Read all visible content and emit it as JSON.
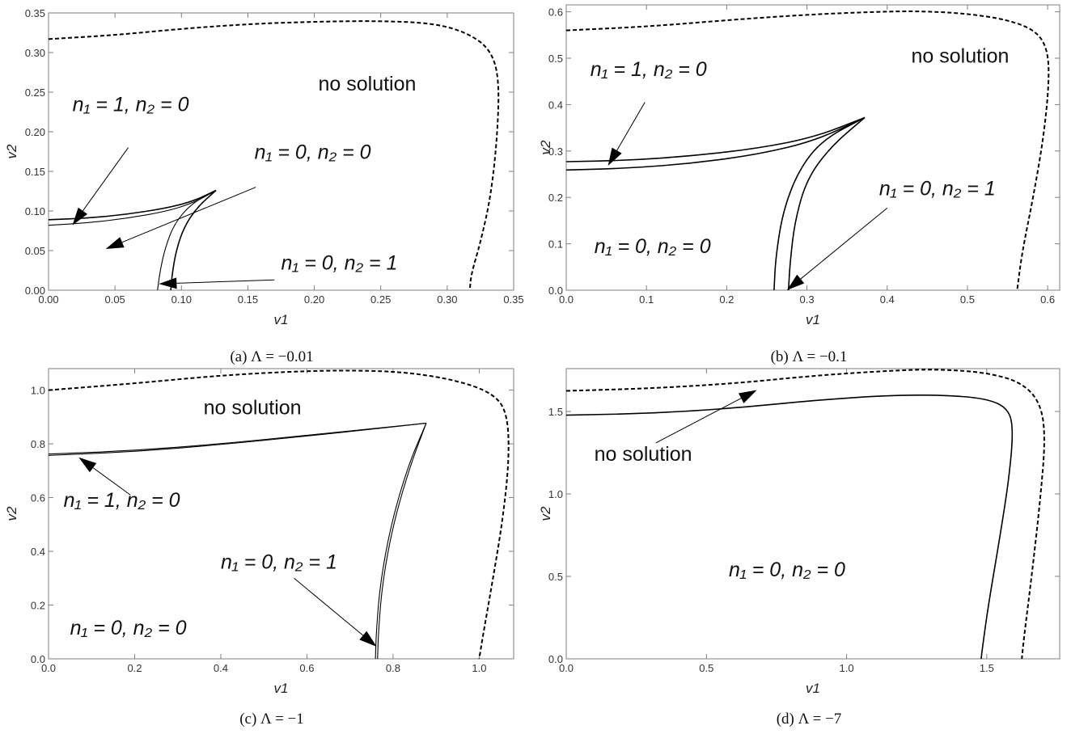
{
  "chart_data": [
    {
      "type": "line",
      "caption": "(a) Λ = −0.01",
      "xlabel": "v1",
      "ylabel": "v2",
      "xlim": [
        0,
        0.35
      ],
      "ylim": [
        0,
        0.35
      ],
      "xticks": [
        "0.00",
        "0.05",
        "0.10",
        "0.15",
        "0.20",
        "0.25",
        "0.30",
        "0.35"
      ],
      "yticks": [
        "0.00",
        "0.05",
        "0.10",
        "0.15",
        "0.20",
        "0.25",
        "0.30",
        "0.35"
      ],
      "xtick_values": [
        0,
        0.05,
        0.1,
        0.15,
        0.2,
        0.25,
        0.3,
        0.35
      ],
      "ytick_values": [
        0,
        0.05,
        0.1,
        0.15,
        0.2,
        0.25,
        0.3,
        0.35
      ],
      "series": [
        {
          "style": "solid",
          "points": [
            [
              0,
              0.089
            ],
            [
              0.03,
              0.091
            ],
            [
              0.06,
              0.096
            ],
            [
              0.09,
              0.104
            ],
            [
              0.11,
              0.113
            ],
            [
              0.126,
              0.126
            ]
          ]
        },
        {
          "style": "thin",
          "points": [
            [
              0,
              0.082
            ],
            [
              0.03,
              0.085
            ],
            [
              0.06,
              0.091
            ],
            [
              0.09,
              0.1
            ],
            [
              0.11,
              0.111
            ],
            [
              0.126,
              0.126
            ]
          ]
        },
        {
          "style": "solid",
          "points": [
            [
              0.126,
              0.126
            ],
            [
              0.112,
              0.105
            ],
            [
              0.102,
              0.08
            ],
            [
              0.096,
              0.05
            ],
            [
              0.093,
              0.02
            ],
            [
              0.092,
              0.0
            ]
          ]
        },
        {
          "style": "thin",
          "points": [
            [
              0.126,
              0.126
            ],
            [
              0.108,
              0.11
            ],
            [
              0.095,
              0.085
            ],
            [
              0.088,
              0.055
            ],
            [
              0.084,
              0.025
            ],
            [
              0.082,
              0.0
            ]
          ]
        },
        {
          "style": "dashed",
          "points": [
            [
              0,
              0.317
            ],
            [
              0.05,
              0.322
            ],
            [
              0.1,
              0.33
            ],
            [
              0.15,
              0.336
            ],
            [
              0.2,
              0.339
            ],
            [
              0.25,
              0.34
            ],
            [
              0.29,
              0.337
            ],
            [
              0.315,
              0.325
            ],
            [
              0.332,
              0.305
            ],
            [
              0.339,
              0.27
            ],
            [
              0.338,
              0.2
            ],
            [
              0.333,
              0.12
            ],
            [
              0.325,
              0.06
            ],
            [
              0.318,
              0.02
            ],
            [
              0.317,
              0.0
            ]
          ]
        }
      ],
      "annotations": [
        {
          "text": "n₁ = 1, n₂ = 0",
          "at": [
            0.018,
            0.226
          ],
          "arrow_from": [
            0.06,
            0.18
          ],
          "arrow_to": [
            0.018,
            0.082
          ]
        },
        {
          "text": "n₁ = 0, n₂ = 0",
          "at": [
            0.155,
            0.166
          ],
          "arrow_from": [
            0.156,
            0.13
          ],
          "arrow_to": [
            0.043,
            0.052
          ]
        },
        {
          "text": "n₁ = 0, n₂ = 1",
          "at": [
            0.175,
            0.026
          ],
          "arrow_from": [
            0.17,
            0.013
          ],
          "arrow_to": [
            0.083,
            0.008
          ]
        },
        {
          "text": "no solution",
          "at": [
            0.203,
            0.252
          ]
        }
      ]
    },
    {
      "type": "line",
      "caption": "(b) Λ = −0.1",
      "xlabel": "v1",
      "ylabel": "v2",
      "xlim": [
        0,
        0.615
      ],
      "ylim": [
        0,
        0.615
      ],
      "xticks": [
        "0.0",
        "0.1",
        "0.2",
        "0.3",
        "0.4",
        "0.5",
        "0.6"
      ],
      "yticks": [
        "0.0",
        "0.1",
        "0.2",
        "0.3",
        "0.4",
        "0.5",
        "0.6"
      ],
      "xtick_values": [
        0,
        0.1,
        0.2,
        0.3,
        0.4,
        0.5,
        0.6
      ],
      "ytick_values": [
        0,
        0.1,
        0.2,
        0.3,
        0.4,
        0.5,
        0.6
      ],
      "series": [
        {
          "style": "solid",
          "points": [
            [
              0,
              0.277
            ],
            [
              0.08,
              0.28
            ],
            [
              0.16,
              0.29
            ],
            [
              0.24,
              0.306
            ],
            [
              0.31,
              0.33
            ],
            [
              0.372,
              0.372
            ]
          ]
        },
        {
          "style": "solid",
          "points": [
            [
              0,
              0.259
            ],
            [
              0.08,
              0.263
            ],
            [
              0.16,
              0.274
            ],
            [
              0.24,
              0.293
            ],
            [
              0.31,
              0.322
            ],
            [
              0.372,
              0.372
            ]
          ]
        },
        {
          "style": "solid",
          "points": [
            [
              0.372,
              0.372
            ],
            [
              0.33,
              0.31
            ],
            [
              0.3,
              0.24
            ],
            [
              0.285,
              0.15
            ],
            [
              0.279,
              0.06
            ],
            [
              0.277,
              0.0
            ]
          ]
        },
        {
          "style": "solid",
          "points": [
            [
              0.372,
              0.372
            ],
            [
              0.32,
              0.325
            ],
            [
              0.29,
              0.26
            ],
            [
              0.27,
              0.17
            ],
            [
              0.261,
              0.07
            ],
            [
              0.259,
              0.0
            ]
          ]
        },
        {
          "style": "dashed",
          "points": [
            [
              0,
              0.56
            ],
            [
              0.1,
              0.568
            ],
            [
              0.2,
              0.582
            ],
            [
              0.3,
              0.594
            ],
            [
              0.4,
              0.601
            ],
            [
              0.45,
              0.601
            ],
            [
              0.5,
              0.596
            ],
            [
              0.55,
              0.583
            ],
            [
              0.585,
              0.56
            ],
            [
              0.6,
              0.52
            ],
            [
              0.602,
              0.45
            ],
            [
              0.595,
              0.33
            ],
            [
              0.582,
              0.2
            ],
            [
              0.568,
              0.08
            ],
            [
              0.562,
              0.0
            ]
          ]
        }
      ],
      "annotations": [
        {
          "text": "n₁ = 1, n₂ = 0",
          "at": [
            0.03,
            0.462
          ],
          "arrow_from": [
            0.098,
            0.405
          ],
          "arrow_to": [
            0.052,
            0.268
          ]
        },
        {
          "text": "n₁ = 0, n₂ = 1",
          "at": [
            0.39,
            0.205
          ],
          "arrow_from": [
            0.4,
            0.177
          ],
          "arrow_to": [
            0.275,
            0.0
          ]
        },
        {
          "text": "n₁ = 0, n₂ = 0",
          "at": [
            0.035,
            0.08
          ]
        },
        {
          "text": "no solution",
          "at": [
            0.43,
            0.49
          ]
        }
      ]
    },
    {
      "type": "line",
      "caption": "(c) Λ = −1",
      "xlabel": "v1",
      "ylabel": "v2",
      "xlim": [
        0,
        1.08
      ],
      "ylim": [
        0,
        1.08
      ],
      "xticks": [
        "0.0",
        "0.2",
        "0.4",
        "0.6",
        "0.8",
        "1.0"
      ],
      "yticks": [
        "0.0",
        "0.2",
        "0.4",
        "0.6",
        "0.8",
        "1.0"
      ],
      "xtick_values": [
        0,
        0.2,
        0.4,
        0.6,
        0.8,
        1.0
      ],
      "ytick_values": [
        0,
        0.2,
        0.4,
        0.6,
        0.8,
        1.0
      ],
      "series": [
        {
          "style": "thin",
          "points": [
            [
              0,
              0.762
            ],
            [
              0.2,
              0.775
            ],
            [
              0.4,
              0.8
            ],
            [
              0.6,
              0.832
            ],
            [
              0.76,
              0.858
            ],
            [
              0.877,
              0.877
            ]
          ]
        },
        {
          "style": "thin",
          "points": [
            [
              0,
              0.757
            ],
            [
              0.2,
              0.771
            ],
            [
              0.4,
              0.797
            ],
            [
              0.6,
              0.829
            ],
            [
              0.76,
              0.856
            ],
            [
              0.877,
              0.877
            ]
          ]
        },
        {
          "style": "thin",
          "points": [
            [
              0.877,
              0.877
            ],
            [
              0.84,
              0.72
            ],
            [
              0.8,
              0.5
            ],
            [
              0.775,
              0.28
            ],
            [
              0.766,
              0.1
            ],
            [
              0.764,
              0.0
            ]
          ]
        },
        {
          "style": "thin",
          "points": [
            [
              0.877,
              0.877
            ],
            [
              0.835,
              0.72
            ],
            [
              0.795,
              0.5
            ],
            [
              0.77,
              0.28
            ],
            [
              0.761,
              0.1
            ],
            [
              0.759,
              0.0
            ]
          ]
        },
        {
          "style": "dashed",
          "points": [
            [
              0,
              1.0
            ],
            [
              0.2,
              1.025
            ],
            [
              0.4,
              1.055
            ],
            [
              0.6,
              1.072
            ],
            [
              0.75,
              1.073
            ],
            [
              0.85,
              1.063
            ],
            [
              0.95,
              1.035
            ],
            [
              1.03,
              0.99
            ],
            [
              1.065,
              0.92
            ],
            [
              1.07,
              0.75
            ],
            [
              1.055,
              0.52
            ],
            [
              1.03,
              0.28
            ],
            [
              1.008,
              0.08
            ],
            [
              1.0,
              0.0
            ]
          ]
        }
      ],
      "annotations": [
        {
          "text": "n₁ = 1, n₂ = 0",
          "at": [
            0.035,
            0.565
          ],
          "arrow_from": [
            0.19,
            0.61
          ],
          "arrow_to": [
            0.07,
            0.75
          ]
        },
        {
          "text": "n₁ = 0, n₂ = 1",
          "at": [
            0.4,
            0.335
          ],
          "arrow_from": [
            0.57,
            0.3
          ],
          "arrow_to": [
            0.762,
            0.045
          ]
        },
        {
          "text": "n₁ = 0, n₂ = 0",
          "at": [
            0.05,
            0.09
          ]
        },
        {
          "text": "no solution",
          "at": [
            0.36,
            0.91
          ]
        }
      ]
    },
    {
      "type": "line",
      "caption": "(d) Λ = −7",
      "xlabel": "v1",
      "ylabel": "v2",
      "xlim": [
        0,
        1.76
      ],
      "ylim": [
        0,
        1.76
      ],
      "xticks": [
        "0.0",
        "0.5",
        "1.0",
        "1.5"
      ],
      "yticks": [
        "0.0",
        "0.5",
        "1.0",
        "1.5"
      ],
      "xtick_values": [
        0,
        0.5,
        1.0,
        1.5
      ],
      "ytick_values": [
        0,
        0.5,
        1.0,
        1.5
      ],
      "series": [
        {
          "style": "solid",
          "points": [
            [
              0,
              1.478
            ],
            [
              0.3,
              1.488
            ],
            [
              0.6,
              1.52
            ],
            [
              0.9,
              1.57
            ],
            [
              1.15,
              1.598
            ],
            [
              1.35,
              1.6
            ],
            [
              1.5,
              1.578
            ],
            [
              1.575,
              1.52
            ],
            [
              1.595,
              1.4
            ],
            [
              1.58,
              1.1
            ],
            [
              1.545,
              0.72
            ],
            [
              1.505,
              0.32
            ],
            [
              1.484,
              0.06
            ],
            [
              1.48,
              0.0
            ]
          ]
        },
        {
          "style": "dashed",
          "points": [
            [
              0,
              1.625
            ],
            [
              0.3,
              1.64
            ],
            [
              0.6,
              1.67
            ],
            [
              0.9,
              1.72
            ],
            [
              1.2,
              1.752
            ],
            [
              1.35,
              1.755
            ],
            [
              1.5,
              1.735
            ],
            [
              1.62,
              1.68
            ],
            [
              1.69,
              1.56
            ],
            [
              1.71,
              1.35
            ],
            [
              1.69,
              0.95
            ],
            [
              1.66,
              0.5
            ],
            [
              1.632,
              0.12
            ],
            [
              1.625,
              0.0
            ]
          ]
        }
      ],
      "annotations": [
        {
          "text": "n₁ = 0, n₂ = 0",
          "at": [
            0.58,
            0.5
          ]
        },
        {
          "text": "no solution",
          "at": [
            0.1,
            1.2
          ],
          "arrow_from": [
            0.32,
            1.31
          ],
          "arrow_to": [
            0.68,
            1.63
          ]
        }
      ]
    }
  ]
}
